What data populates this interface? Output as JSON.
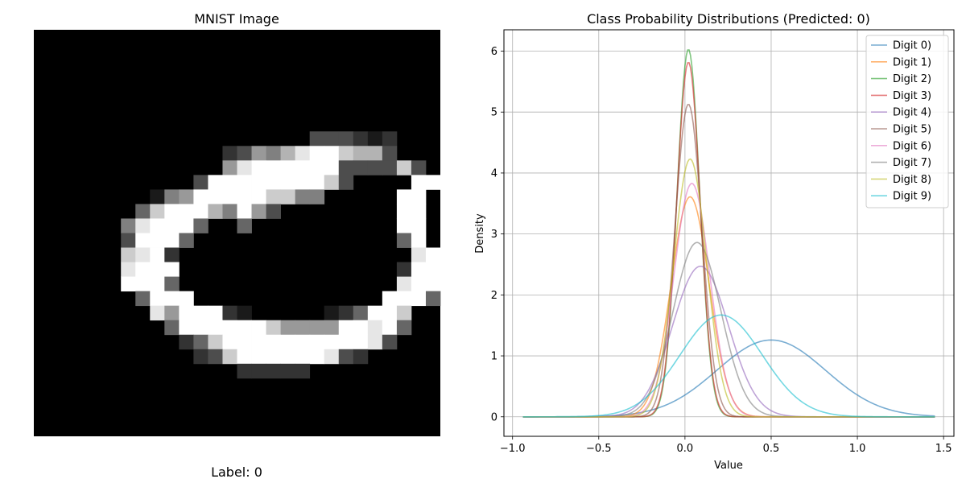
{
  "left_panel": {
    "title": "MNIST Image",
    "caption": "Label: 0",
    "pixel_grid": [
      "0000000000000000000000000000",
      "0000000000000000000000000000",
      "0000000000000000000000000000",
      "0000000000000000000000000000",
      "0000000000000000000000000000",
      "0000000000000000000000000000",
      "0000000000000000000000000000",
      "000000000000000000033321200",
      "0000000000000236579AA8773000",
      "000000000000069AAAAAA333383000",
      "000000000003AAAAAAAA830000CA00",
      "00000000156AAAAA885500000CA00",
      "000000048AAB75A6300000000CA00",
      "00000059AAD40040000000000CA00",
      "0000003AAD4000000000000004A00",
      "00000089A200000000000000009A6",
      "0000009AAA0000000000000002AA40",
      "000000AAA40000000000000009AA2",
      "00000004AAC0000000000000AAA40",
      "0000000096AAA2100000124AA800",
      "0000000004AAAAAA86666AA9A400",
      "0000000000248AAAAAAAAAA93000",
      "00000000000238AAAAAA93200000",
      "0000000000000022222000000000",
      "0000000000000000000000000000",
      "0000000000000000000000000000",
      "0000000000000000000000000000",
      "0000000000000000000000000000"
    ]
  },
  "chart_data": {
    "type": "line",
    "title": "Class Probability Distributions (Predicted: 0)",
    "xlabel": "Value",
    "ylabel": "Density",
    "xlim": [
      -1.05,
      1.56
    ],
    "ylim": [
      -0.32,
      6.35
    ],
    "xticks": [
      -1.0,
      -0.5,
      0.0,
      0.5,
      1.0,
      1.5
    ],
    "xtick_labels": [
      "−1.0",
      "−0.5",
      "0.0",
      "0.5",
      "1.0",
      "1.5"
    ],
    "yticks": [
      0,
      1,
      2,
      3,
      4,
      5,
      6
    ],
    "ytick_labels": [
      "0",
      "1",
      "2",
      "3",
      "4",
      "5",
      "6"
    ],
    "grid": true,
    "legend_position": "top-right",
    "x_range": [
      -0.94,
      1.45
    ],
    "series": [
      {
        "name": "Digit 0)",
        "color": "#1f77b4",
        "mean": 0.5,
        "std": 0.315,
        "peak": 1.26
      },
      {
        "name": "Digit 1)",
        "color": "#ff7f0e",
        "mean": 0.03,
        "std": 0.11,
        "peak": 3.61
      },
      {
        "name": "Digit 2)",
        "color": "#2ca02c",
        "mean": 0.02,
        "std": 0.066,
        "peak": 6.03
      },
      {
        "name": "Digit 3)",
        "color": "#d62728",
        "mean": 0.02,
        "std": 0.068,
        "peak": 5.82
      },
      {
        "name": "Digit 4)",
        "color": "#9467bd",
        "mean": 0.09,
        "std": 0.162,
        "peak": 2.47
      },
      {
        "name": "Digit 5)",
        "color": "#8c564b",
        "mean": 0.02,
        "std": 0.078,
        "peak": 5.13
      },
      {
        "name": "Digit 6)",
        "color": "#e377c2",
        "mean": 0.04,
        "std": 0.104,
        "peak": 3.83
      },
      {
        "name": "Digit 7)",
        "color": "#7f7f7f",
        "mean": 0.07,
        "std": 0.139,
        "peak": 2.86
      },
      {
        "name": "Digit 8)",
        "color": "#bcbd22",
        "mean": 0.03,
        "std": 0.095,
        "peak": 4.23
      },
      {
        "name": "Digit 9)",
        "color": "#17becf",
        "mean": 0.21,
        "std": 0.239,
        "peak": 1.67
      }
    ]
  }
}
